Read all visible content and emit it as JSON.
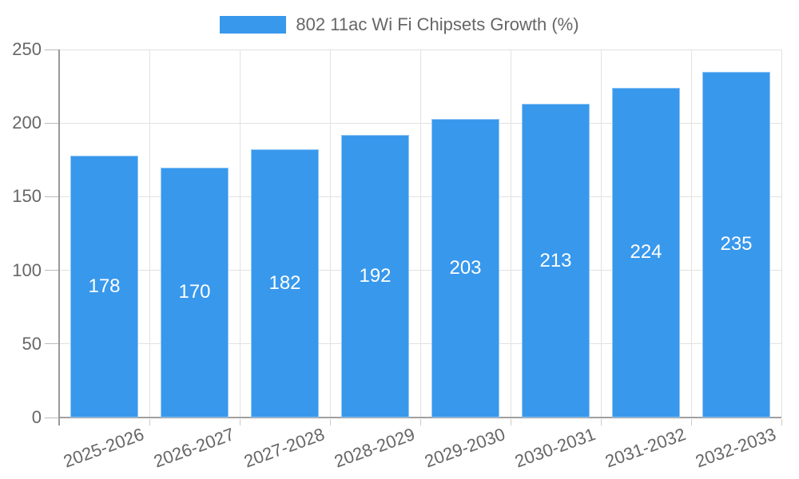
{
  "chart_data": {
    "type": "bar",
    "title": "802 11ac Wi Fi Chipsets Growth (%)",
    "categories": [
      "2025-2026",
      "2026-2027",
      "2027-2028",
      "2028-2029",
      "2029-2030",
      "2030-2031",
      "2031-2032",
      "2032-2033"
    ],
    "values": [
      178,
      170,
      182,
      192,
      203,
      213,
      224,
      235
    ],
    "xlabel": "",
    "ylabel": "",
    "ylim": [
      0,
      250
    ],
    "yticks": [
      0,
      50,
      100,
      150,
      200,
      250
    ],
    "grid": "on",
    "legend_position": "top-center",
    "bar_color": "#3898EC",
    "value_label_color": "#ffffff",
    "axis_text_color": "#666666",
    "grid_color": "#e2e2e2",
    "axis_line_color": "#999999"
  }
}
